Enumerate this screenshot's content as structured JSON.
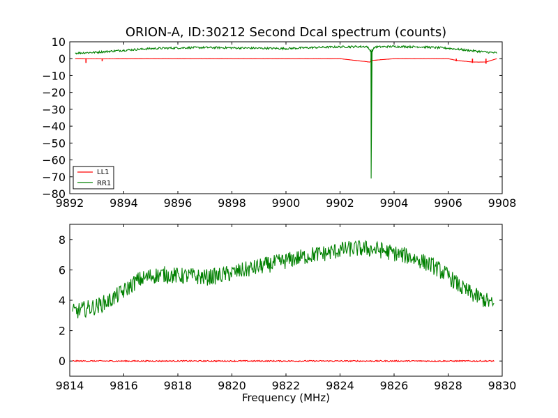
{
  "chart_data": [
    {
      "type": "line",
      "title": "ORION-A, ID:30212 Second Dcal spectrum (counts)",
      "xlabel": "",
      "ylabel": "",
      "xlim": [
        9892,
        9908
      ],
      "ylim": [
        -80,
        10
      ],
      "xticks": [
        9892,
        9894,
        9896,
        9898,
        9900,
        9902,
        9904,
        9906,
        9908
      ],
      "yticks": [
        10,
        0,
        -10,
        -20,
        -30,
        -40,
        -50,
        -60,
        -70,
        -80
      ],
      "grid": false,
      "legend": {
        "placement": "lower-left",
        "entries": [
          "LL1",
          "RR1"
        ]
      },
      "series": [
        {
          "name": "LL1",
          "color": "#ff0000",
          "x": [
            9892.2,
            9892.7,
            9893.2,
            9895,
            9898,
            9900,
            9902,
            9903.1,
            9903.2,
            9904,
            9905.5,
            9906,
            9906.3,
            9906.9,
            9907.4,
            9907.8
          ],
          "y": [
            0,
            -0.1,
            -0.1,
            0,
            0,
            0,
            0,
            -2,
            -1,
            0,
            0,
            0,
            -1,
            -2,
            -2,
            0
          ],
          "spikes": [
            {
              "x": 9892.6,
              "y": -2.5
            },
            {
              "x": 9893.2,
              "y": -1.5
            },
            {
              "x": 9903.15,
              "y": -2.0
            },
            {
              "x": 9906.3,
              "y": -1.5
            },
            {
              "x": 9906.9,
              "y": -2.5
            },
            {
              "x": 9907.4,
              "y": -3.0
            }
          ]
        },
        {
          "name": "RR1",
          "color": "#008000",
          "x": [
            9892.2,
            9893,
            9894,
            9895,
            9896,
            9897,
            9898,
            9899,
            9900,
            9901,
            9902,
            9903,
            9903.1,
            9903.15,
            9903.2,
            9903.3,
            9904,
            9905,
            9906,
            9907,
            9907.8
          ],
          "y": [
            3.3,
            3.8,
            5.0,
            6.0,
            6.4,
            6.6,
            6.4,
            6.2,
            6.0,
            6.6,
            7.0,
            7.2,
            5.0,
            -71,
            5.0,
            7.0,
            7.2,
            7.0,
            6.2,
            4.5,
            3.4
          ]
        }
      ]
    },
    {
      "type": "line",
      "title": "",
      "xlabel": "Frequency (MHz)",
      "ylabel": "",
      "xlim": [
        9814,
        9830
      ],
      "ylim": [
        -1,
        9
      ],
      "xticks": [
        9814,
        9816,
        9818,
        9820,
        9822,
        9824,
        9826,
        9828,
        9830
      ],
      "yticks": [
        8,
        6,
        4,
        2,
        0
      ],
      "grid": false,
      "series": [
        {
          "name": "LL1",
          "color": "#ff0000",
          "x": [
            9814.1,
            9817,
            9820,
            9823,
            9826,
            9829.7
          ],
          "y": [
            0,
            0,
            0,
            0,
            0,
            0
          ]
        },
        {
          "name": "RR1",
          "color": "#008000",
          "x": [
            9814.1,
            9814.5,
            9815,
            9815.5,
            9816,
            9816.5,
            9817,
            9817.5,
            9818,
            9818.5,
            9819,
            9819.5,
            9820,
            9820.5,
            9821,
            9821.5,
            9822,
            9822.5,
            9823,
            9823.5,
            9824,
            9824.5,
            9825,
            9825.5,
            9826,
            9826.5,
            9827,
            9827.5,
            9828,
            9828.5,
            9829,
            9829.5,
            9829.7
          ],
          "y": [
            3.2,
            3.4,
            3.6,
            4.0,
            4.6,
            5.3,
            5.6,
            5.7,
            5.6,
            5.6,
            5.5,
            5.6,
            5.8,
            6.0,
            6.2,
            6.4,
            6.6,
            6.8,
            7.0,
            7.1,
            7.3,
            7.4,
            7.4,
            7.3,
            7.1,
            6.9,
            6.6,
            6.2,
            5.6,
            4.8,
            4.3,
            3.9,
            3.6
          ]
        }
      ]
    }
  ]
}
